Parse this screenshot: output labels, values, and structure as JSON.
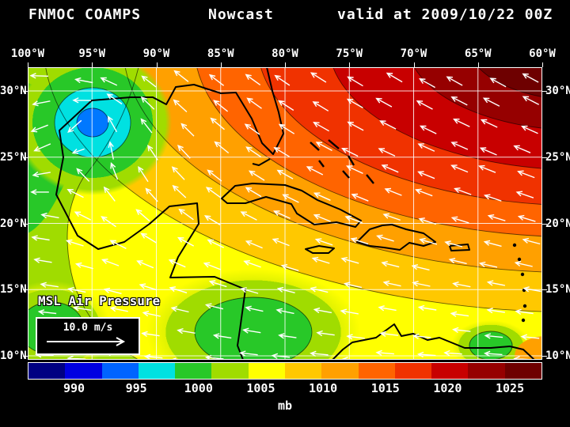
{
  "header": {
    "product": "FNMOC COAMPS",
    "mode": "Nowcast",
    "valid": "valid at 2009/10/22 00Z"
  },
  "axes": {
    "lon_labels": [
      "100°W",
      "95°W",
      "90°W",
      "85°W",
      "80°W",
      "75°W",
      "70°W",
      "65°W",
      "60°W"
    ],
    "lat_labels": [
      "30°N",
      "25°N",
      "20°N",
      "15°N",
      "10°N"
    ]
  },
  "overlay": {
    "field_label": "MSL Air Pressure",
    "wind_scale_label": "10.0 m/s"
  },
  "colorbar": {
    "unit": "mb",
    "tick_labels": [
      "990",
      "995",
      "1000",
      "1005",
      "1010",
      "1015",
      "1020",
      "1025"
    ],
    "cell_colors": [
      "#000082",
      "#0000E1",
      "#0064FF",
      "#00E1E1",
      "#28C828",
      "#A0DC00",
      "#FFFF00",
      "#FFC800",
      "#FFA000",
      "#FF6400",
      "#F03200",
      "#C80000",
      "#960000",
      "#6E0000"
    ]
  },
  "chart_data": {
    "type": "heatmap",
    "field": "mean sea level air pressure",
    "unit": "mb",
    "lon_range": [
      "100°W",
      "60°W"
    ],
    "lat_range": [
      "10°N",
      "30°N"
    ],
    "colorbar_tick_values": [
      990,
      995,
      1000,
      1005,
      1010,
      1015,
      1020,
      1025
    ],
    "features": [
      {
        "feature": "high pressure area",
        "location": "northeast corner, near 60-65°W / 30°N",
        "approx_value_mb": 1026
      },
      {
        "feature": "low pressure area",
        "location": "northwest Gulf of Mexico near Texas coast, ~95°W 28°N",
        "approx_value_mb": 999
      },
      {
        "feature": "wind vectors",
        "description": "white arrows, easterly/northeasterly flow, reference arrow = 10.0 m/s"
      }
    ]
  }
}
